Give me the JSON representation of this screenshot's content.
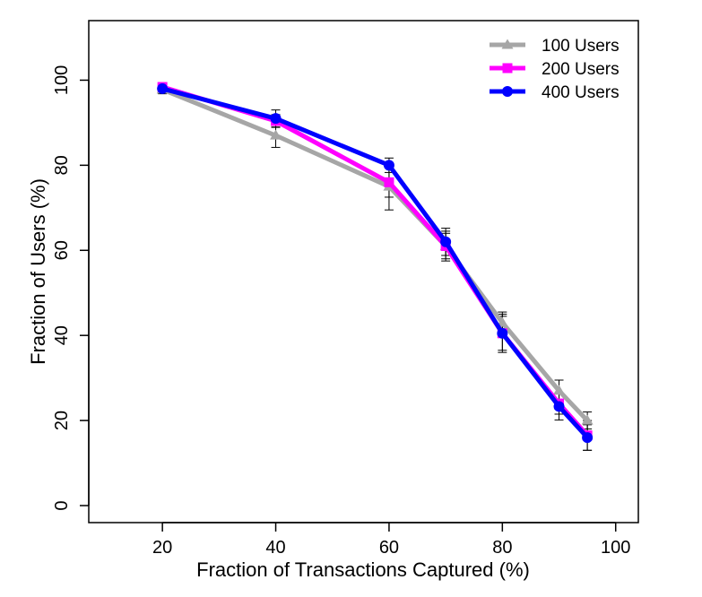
{
  "chart_data": {
    "type": "line",
    "title": "",
    "xlabel": "Fraction of Transactions Captured (%)",
    "ylabel": "Fraction of Users (%)",
    "xlim": [
      7,
      104
    ],
    "ylim": [
      -4,
      114
    ],
    "x_ticks": [
      20,
      40,
      60,
      80,
      100
    ],
    "y_ticks": [
      0,
      20,
      40,
      60,
      80,
      100
    ],
    "grid": false,
    "legend_position": "top-right",
    "x": [
      20,
      40,
      60,
      70,
      80,
      90,
      95
    ],
    "series": [
      {
        "name": "100 Users",
        "color": "#a6a6a6",
        "marker": "triangle",
        "values": [
          97.8,
          87.0,
          75.0,
          61.0,
          43.0,
          27.0,
          20.0
        ],
        "error": [
          1.0,
          2.8,
          5.5,
          3.5,
          2.5,
          2.5,
          2.0
        ]
      },
      {
        "name": "200 Users",
        "color": "#ff00ff",
        "marker": "square",
        "values": [
          98.4,
          90.4,
          76.0,
          61.0,
          40.5,
          24.0,
          16.5
        ],
        "error": [
          1.0,
          1.5,
          3.5,
          3.0,
          4.0,
          2.5,
          3.5
        ]
      },
      {
        "name": "400 Users",
        "color": "#0000ff",
        "marker": "circle",
        "values": [
          98.0,
          91.0,
          80.0,
          62.0,
          40.5,
          23.3,
          16.0
        ],
        "error": [
          1.0,
          2.0,
          1.7,
          3.2,
          4.5,
          3.2,
          3.0
        ]
      }
    ]
  }
}
